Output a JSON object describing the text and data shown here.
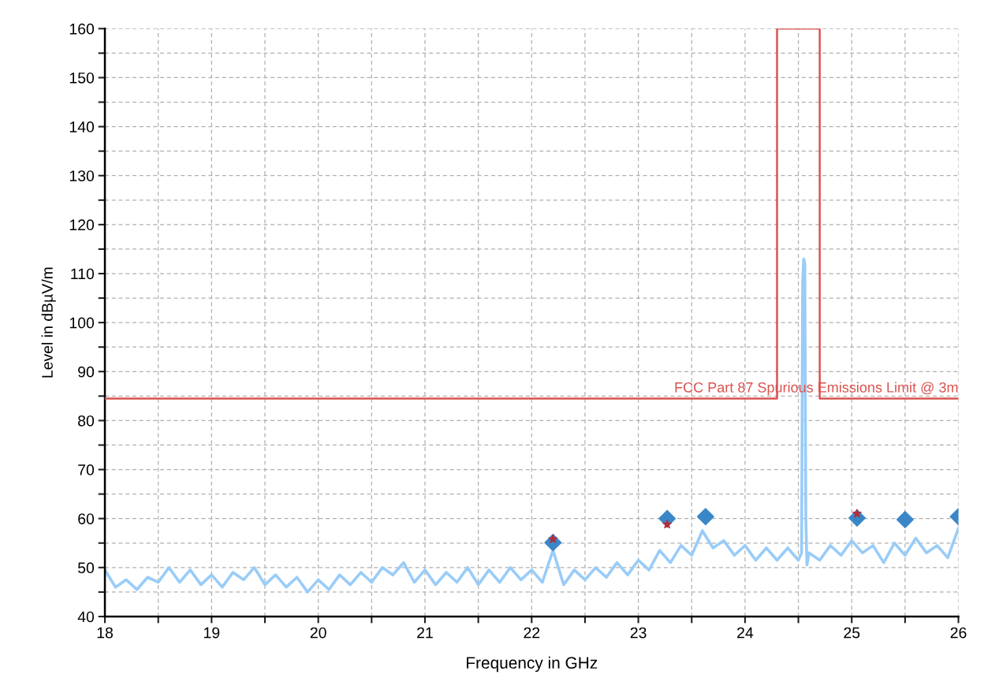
{
  "chart_data": {
    "type": "line",
    "xlabel": "Frequency in GHz",
    "ylabel": "Level in dBµV/m",
    "xlim": [
      18,
      26
    ],
    "ylim": [
      40,
      160
    ],
    "xticks": [
      18,
      {
        "value": 18.5,
        "label": null
      },
      19,
      {
        "value": 19.5,
        "label": null
      },
      20,
      {
        "value": 20.5,
        "label": null
      },
      21,
      {
        "value": 21.5,
        "label": null
      },
      22,
      {
        "value": 22.5,
        "label": null
      },
      23,
      {
        "value": 23.5,
        "label": null
      },
      24,
      {
        "value": 24.5,
        "label": null
      },
      25,
      {
        "value": 25.5,
        "label": null
      },
      26
    ],
    "yticks": [
      40,
      {
        "value": 45,
        "label": null
      },
      50,
      {
        "value": 55,
        "label": null
      },
      60,
      {
        "value": 65,
        "label": null
      },
      70,
      {
        "value": 75,
        "label": null
      },
      80,
      {
        "value": 85,
        "label": null
      },
      90,
      {
        "value": 95,
        "label": null
      },
      100,
      {
        "value": 105,
        "label": null
      },
      110,
      {
        "value": 115,
        "label": null
      },
      120,
      {
        "value": 125,
        "label": null
      },
      130,
      {
        "value": 135,
        "label": null
      },
      140,
      {
        "value": 145,
        "label": null
      },
      150,
      {
        "value": 155,
        "label": null
      },
      160
    ],
    "grid": true,
    "series": [
      {
        "color": "#99ccf8",
        "x": [
          18.0,
          18.1,
          18.2,
          18.3,
          18.4,
          18.5,
          18.6,
          18.7,
          18.8,
          18.9,
          19.0,
          19.1,
          19.2,
          19.3,
          19.4,
          19.5,
          19.6,
          19.7,
          19.8,
          19.9,
          20.0,
          20.1,
          20.2,
          20.3,
          20.4,
          20.5,
          20.6,
          20.7,
          20.8,
          20.9,
          21.0,
          21.1,
          21.2,
          21.3,
          21.4,
          21.5,
          21.6,
          21.7,
          21.8,
          21.9,
          22.0,
          22.1,
          22.2,
          22.3,
          22.4,
          22.5,
          22.6,
          22.7,
          22.8,
          22.9,
          23.0,
          23.1,
          23.2,
          23.3,
          23.4,
          23.5,
          23.6,
          23.7,
          23.8,
          23.9,
          24.0,
          24.1,
          24.2,
          24.3,
          24.4,
          24.5,
          24.53,
          24.54,
          24.55,
          24.56,
          24.57,
          24.58,
          24.6,
          24.7,
          24.8,
          24.9,
          25.0,
          25.1,
          25.2,
          25.3,
          25.4,
          25.5,
          25.6,
          25.7,
          25.8,
          25.9,
          26.0
        ],
        "values": [
          49.5,
          46,
          47.5,
          45.5,
          48,
          47,
          50,
          47,
          49.5,
          46.5,
          48.5,
          46,
          49,
          47.5,
          50,
          46.5,
          48.5,
          46,
          48,
          45,
          47.5,
          45.5,
          48.5,
          46.5,
          49,
          47,
          50,
          48.5,
          51,
          47,
          49.5,
          46.5,
          49,
          47,
          50,
          46.5,
          49.5,
          47,
          50,
          47.5,
          49.5,
          47,
          53.5,
          46.5,
          49.5,
          47.5,
          50,
          48,
          51,
          48.5,
          51.5,
          49.5,
          53.5,
          51,
          54.5,
          52.5,
          57.5,
          54,
          55.5,
          52.5,
          54.5,
          51.5,
          54,
          51.5,
          54,
          51.5,
          53,
          108,
          113,
          112,
          60,
          50.5,
          53,
          51.5,
          54.5,
          52.5,
          55.5,
          53,
          54.5,
          51,
          55,
          52.5,
          56,
          53,
          54.5,
          52,
          58
        ],
        "marker": "none",
        "line_style": "solid"
      },
      {
        "color": "#d9534f",
        "x": [
          18,
          24.3,
          24.3,
          24.7,
          24.7,
          26
        ],
        "values": [
          84.5,
          84.5,
          160,
          160,
          84.5,
          84.5
        ],
        "marker": "none",
        "line_style": "solid"
      },
      {
        "type": "scatter",
        "color": "#3a87c8",
        "x": [
          22.2,
          23.27,
          23.63,
          25.05,
          25.5,
          26.0
        ],
        "values": [
          55.1,
          60,
          60.4,
          60.1,
          59.8,
          60.4
        ],
        "marker": "diamond"
      },
      {
        "type": "scatter",
        "color": "#b03040",
        "x": [
          22.2,
          23.27,
          25.05
        ],
        "values": [
          55.8,
          58.8,
          61
        ],
        "marker": "star"
      }
    ],
    "annotations": [
      {
        "text": "FCC Part 87 Spurious Emissions Limit @ 3m",
        "x": 26,
        "y": 84.5
      }
    ]
  }
}
